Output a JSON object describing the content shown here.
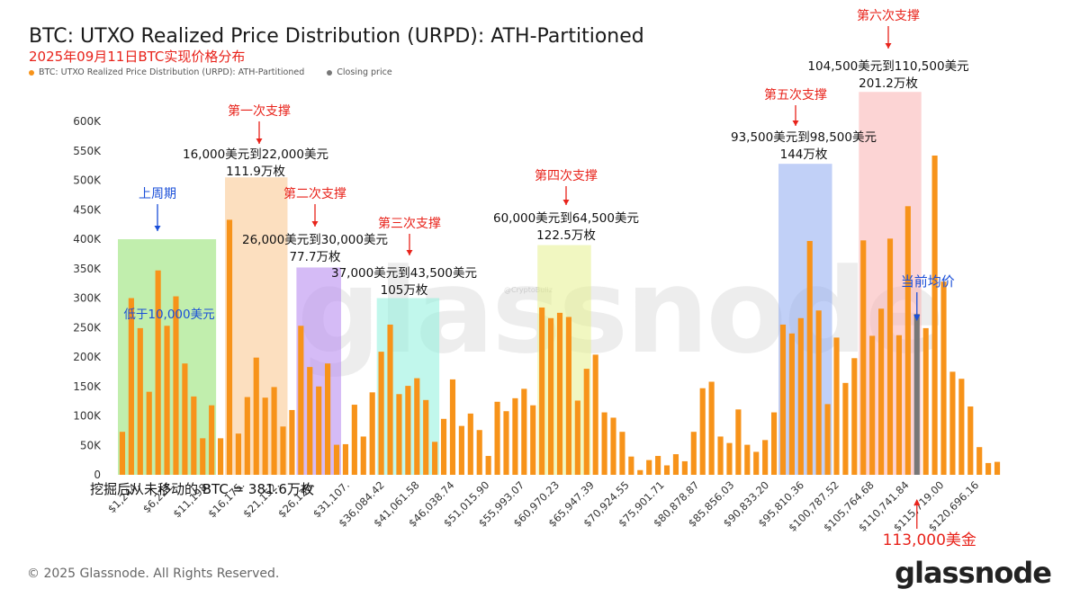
{
  "title": "BTC: UTXO Realized Price Distribution (URPD): ATH-Partitioned",
  "subtitle": "2025年09月11日BTC实现价格分布",
  "legend": [
    {
      "label": "BTC: UTXO Realized Price Distribution (URPD): ATH-Partitioned",
      "color": "#f7931a"
    },
    {
      "label": "Closing price",
      "color": "#777777"
    }
  ],
  "footer": "© 2025 Glassnode. All Rights Reserved.",
  "brand": "glassnode",
  "watermark": "glassnode",
  "watermark_small": "@CryptoBullz",
  "colors": {
    "bar": "#f7931a",
    "closing": "#777777",
    "red": "#e8231b",
    "blue": "#1a4fd8"
  },
  "chart_data": {
    "type": "bar",
    "ylim": [
      0,
      600000
    ],
    "yticks": [
      0,
      50000,
      100000,
      150000,
      200000,
      250000,
      300000,
      350000,
      400000,
      450000,
      500000,
      550000,
      600000
    ],
    "ytick_labels": [
      "0",
      "50K",
      "100K",
      "150K",
      "200K",
      "250K",
      "300K",
      "350K",
      "400K",
      "450K",
      "500K",
      "550K",
      "600K"
    ],
    "xtick_labels": [
      "$1,244.",
      "$6,221.",
      "$11,198.",
      "$16,175.",
      "$21,152.",
      "$26,130.",
      "$31,107.",
      "$36,084.42",
      "$41,061.58",
      "$46,038.74",
      "$51,015.90",
      "$55,993.07",
      "$60,970.23",
      "$65,947.39",
      "$70,924.55",
      "$75,901.71",
      "$80,878.87",
      "$85,856.03",
      "$90,833.20",
      "$95,810.36",
      "$100,787.52",
      "$105,764.68",
      "$110,741.84",
      "$115,719.00",
      "$120,696.16"
    ],
    "closing_price_index": 89,
    "values": [
      73000,
      300000,
      249000,
      141000,
      347000,
      253000,
      303000,
      189000,
      133000,
      62000,
      118000,
      62000,
      433000,
      70000,
      132000,
      199000,
      131000,
      149000,
      82000,
      110000,
      253000,
      183000,
      150000,
      189000,
      51000,
      52000,
      119000,
      65000,
      140000,
      209000,
      255000,
      137000,
      151000,
      164000,
      127000,
      56000,
      95000,
      162000,
      83000,
      104000,
      76000,
      32000,
      124000,
      108000,
      130000,
      146000,
      118000,
      284000,
      266000,
      275000,
      268000,
      126000,
      180000,
      204000,
      106000,
      97000,
      73000,
      31000,
      8000,
      25000,
      32000,
      16000,
      35000,
      23000,
      73000,
      147000,
      158000,
      65000,
      54000,
      111000,
      51000,
      39000,
      59000,
      106000,
      255000,
      240000,
      266000,
      397000,
      279000,
      120000,
      233000,
      156000,
      198000,
      398000,
      236000,
      282000,
      401000,
      237000,
      456000,
      273000,
      249000,
      542000,
      328000,
      175000,
      163000,
      116000,
      47000,
      20000,
      22000
    ]
  },
  "zones": [
    {
      "color": "#8ee06a",
      "alpha": 0.55,
      "y_top": 400000,
      "label_lines": [
        "低于10,000美元"
      ],
      "label_color": "#1a4fd8",
      "title": "上周期",
      "title_color": "#1a4fd8"
    },
    {
      "color": "#f9c48a",
      "alpha": 0.55,
      "y_top": 505000,
      "label_lines": [
        "16,000美元到22,000美元",
        "111.9万枚"
      ],
      "label_color": "#111111",
      "title": "第一次支撑",
      "title_color": "#e8231b"
    },
    {
      "color": "#b98df0",
      "alpha": 0.6,
      "y_top": 352000,
      "label_lines": [
        "26,000美元到30,000美元",
        "77.7万枚"
      ],
      "label_color": "#111111",
      "title": "第二次支撑",
      "title_color": "#e8231b"
    },
    {
      "color": "#8ef0dc",
      "alpha": 0.55,
      "y_top": 300000,
      "label_lines": [
        "37,000美元到43,500美元",
        "105万枚"
      ],
      "label_color": "#111111",
      "title": "第三次支撑",
      "title_color": "#e8231b"
    },
    {
      "color": "#e6f08e",
      "alpha": 0.55,
      "y_top": 390000,
      "label_lines": [
        "60,000美元到64,500美元",
        "122.5万枚"
      ],
      "label_color": "#111111",
      "title": "第四次支撑",
      "title_color": "#e8231b"
    },
    {
      "color": "#8eaaf0",
      "alpha": 0.55,
      "y_top": 528000,
      "label_lines": [
        "93,500美元到98,500美元",
        "144万枚"
      ],
      "label_color": "#111111",
      "title": "第五次支撑",
      "title_color": "#e8231b"
    },
    {
      "color": "#f9b0b0",
      "alpha": 0.55,
      "y_top": 650000,
      "label_lines": [
        "104,500美元到110,500美元",
        "201.2万枚"
      ],
      "label_color": "#111111",
      "title": "第六次支撑",
      "title_color": "#e8231b"
    }
  ],
  "annotations": {
    "unmoved": "挖掘后从未移动的 BTC = 381.6万枚",
    "current_avg": "当前均价",
    "current_price": "113,000美金"
  }
}
